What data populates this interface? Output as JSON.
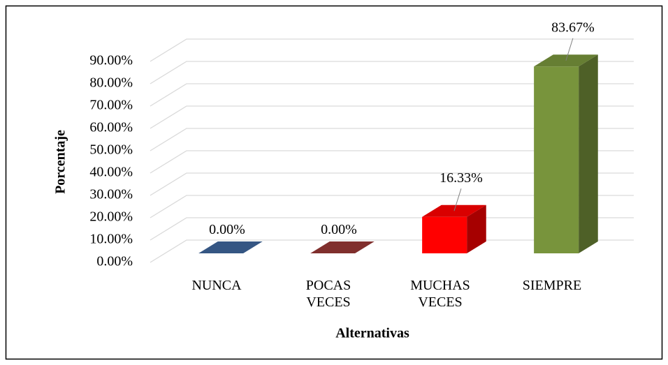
{
  "chart_data": {
    "type": "bar3d",
    "xlabel": "Alternativas",
    "ylabel": "Porcentaje",
    "categories": [
      "NUNCA",
      "POCAS VECES",
      "MUCHAS VECES",
      "SIEMPRE"
    ],
    "values": [
      0,
      0,
      16.33,
      83.67
    ],
    "value_labels": [
      "0.00%",
      "0.00%",
      "16.33%",
      "83.67%"
    ],
    "colors": [
      "#3e659a",
      "#963735",
      "#ff0000",
      "#78943c"
    ],
    "ylim": [
      0,
      90
    ],
    "yticks": [
      {
        "value": 0,
        "label": "0.00%"
      },
      {
        "value": 10,
        "label": "10.00%"
      },
      {
        "value": 20,
        "label": "20.00%"
      },
      {
        "value": 30,
        "label": "30.00%"
      },
      {
        "value": 40,
        "label": "40.00%"
      },
      {
        "value": 50,
        "label": "50.00%"
      },
      {
        "value": 60,
        "label": "60.00%"
      },
      {
        "value": 70,
        "label": "70.00%"
      },
      {
        "value": 80,
        "label": "80.00%"
      },
      {
        "value": 90,
        "label": "90.00%"
      }
    ],
    "grid": true
  }
}
